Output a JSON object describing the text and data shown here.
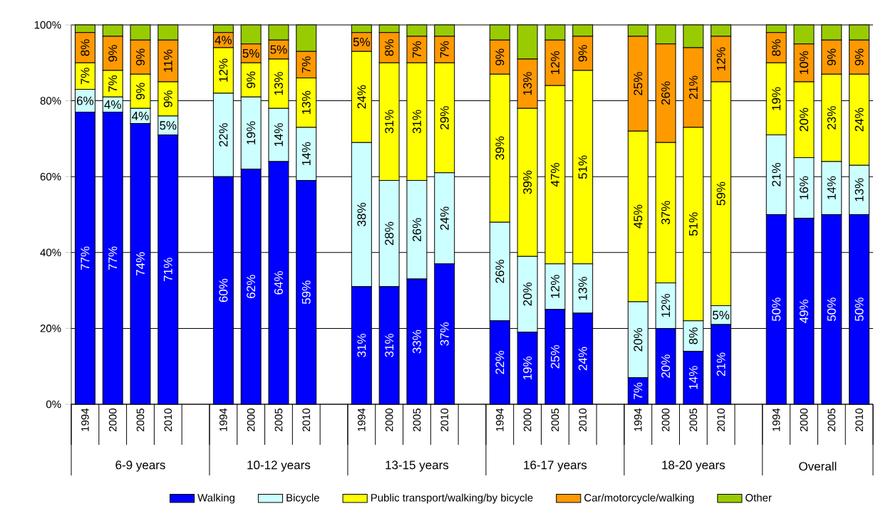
{
  "chart_data": {
    "type": "bar",
    "stacked": true,
    "categories": [
      "1994",
      "2000",
      "2005",
      "2010",
      null,
      "1994",
      "2000",
      "2005",
      "2010",
      null,
      "1994",
      "2000",
      "2005",
      "2010",
      null,
      "1994",
      "2000",
      "2005",
      "2010",
      null,
      "1994",
      "2000",
      "2005",
      "2010",
      null,
      "1994",
      "2000",
      "2005",
      "2010"
    ],
    "series": [
      {
        "name": "Walking",
        "color": "#0000ff",
        "values": [
          77,
          77,
          74,
          71,
          null,
          60,
          62,
          64,
          59,
          null,
          31,
          31,
          33,
          37,
          null,
          22,
          19,
          25,
          24,
          null,
          7,
          20,
          14,
          21,
          null,
          50,
          49,
          50,
          50
        ],
        "value_labels": [
          "77%",
          "77%",
          "74%",
          "71%",
          null,
          "60%",
          "62%",
          "64%",
          "59%",
          null,
          "31%",
          "31%",
          "33%",
          "37%",
          null,
          "22%",
          "19%",
          "25%",
          "24%",
          null,
          "7%",
          "20%",
          "14%",
          "21%",
          null,
          "50%",
          "49%",
          "50%",
          "50%"
        ]
      },
      {
        "name": "Bicycle",
        "color": "#ccffff",
        "values": [
          6,
          4,
          4,
          5,
          null,
          22,
          19,
          14,
          14,
          null,
          38,
          28,
          26,
          24,
          null,
          26,
          20,
          12,
          13,
          null,
          20,
          12,
          8,
          5,
          null,
          21,
          16,
          14,
          13
        ],
        "value_labels": [
          "6%",
          "4%",
          "4%",
          "5%",
          null,
          "22%",
          "19%",
          "14%",
          "14%",
          null,
          "38%",
          "28%",
          "26%",
          "24%",
          null,
          "26%",
          "20%",
          "12%",
          "13%",
          null,
          "20%",
          "12%",
          "8%",
          "5%",
          null,
          "21%",
          "16%",
          "14%",
          "13%"
        ]
      },
      {
        "name": "Public transport/walking/by bicycle",
        "color": "#ffff00",
        "values": [
          7,
          7,
          9,
          9,
          null,
          12,
          9,
          13,
          13,
          null,
          24,
          31,
          31,
          29,
          null,
          39,
          39,
          47,
          51,
          null,
          45,
          37,
          51,
          59,
          null,
          19,
          20,
          23,
          24
        ],
        "value_labels": [
          "7%",
          "7%",
          "9%",
          "9%",
          null,
          "12%",
          "9%",
          "13%",
          "13%",
          null,
          "24%",
          "31%",
          "31%",
          "29%",
          null,
          "39%",
          "39%",
          "47%",
          "51%",
          null,
          "45%",
          "37%",
          "51%",
          "59%",
          null,
          "19%",
          "20%",
          "23%",
          "24%"
        ]
      },
      {
        "name": "Car/motorcycle/walking",
        "color": "#ff9900",
        "values": [
          8,
          9,
          9,
          11,
          null,
          4,
          5,
          5,
          7,
          null,
          5,
          8,
          7,
          7,
          null,
          9,
          13,
          12,
          9,
          null,
          25,
          26,
          21,
          12,
          null,
          8,
          10,
          9,
          9
        ],
        "value_labels": [
          "8%",
          "9%",
          "9%",
          "11%",
          null,
          "4%",
          "5%",
          "5%",
          "7%",
          null,
          "5%",
          "8%",
          "7%",
          "7%",
          null,
          "9%",
          "13%",
          "12%",
          "9%",
          null,
          "25%",
          "26%",
          "21%",
          "12%",
          null,
          "8%",
          "10%",
          "9%",
          "9%"
        ]
      },
      {
        "name": "Other",
        "color": "#99cc00",
        "values": [
          2,
          3,
          4,
          4,
          null,
          2,
          5,
          4,
          7,
          null,
          2,
          2,
          3,
          3,
          null,
          4,
          9,
          4,
          3,
          null,
          3,
          5,
          6,
          3,
          null,
          2,
          5,
          4,
          4
        ]
      }
    ],
    "ylim": [
      0,
      100
    ],
    "yticks": [
      {
        "value": 0,
        "label": "0%"
      },
      {
        "value": 20,
        "label": "20%"
      },
      {
        "value": 40,
        "label": "40%"
      },
      {
        "value": 60,
        "label": "60%"
      },
      {
        "value": 80,
        "label": "80%"
      },
      {
        "value": 100,
        "label": "100%"
      }
    ],
    "grid": "y",
    "legend": "bottom",
    "annotations": [
      "6-9 years",
      "10-12 years",
      "13-15 years",
      "16-17 years",
      "18-20 years",
      "Overall"
    ]
  }
}
